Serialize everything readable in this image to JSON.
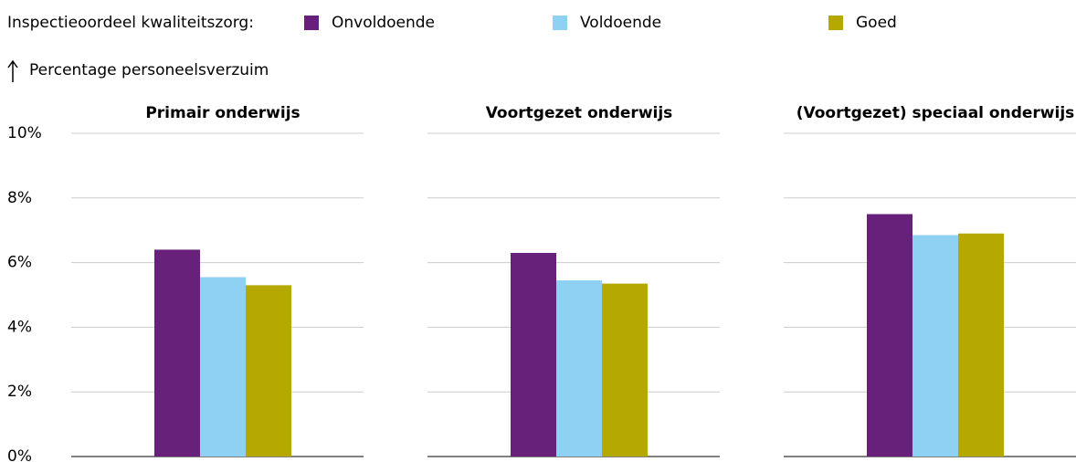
{
  "chart_data": {
    "type": "bar",
    "legend_title": "Inspectieoordeel kwaliteitszorg:",
    "ylabel": "Percentage personeelsverzuim",
    "categories": [
      "Primair onderwijs",
      "Voortgezet onderwijs",
      "(Voortgezet) speciaal onderwijs"
    ],
    "series": [
      {
        "name": "Onvoldoende",
        "color": "#68217a",
        "values": [
          6.4,
          6.3,
          7.5
        ]
      },
      {
        "name": "Voldoende",
        "color": "#8fd1f2",
        "values": [
          5.55,
          5.45,
          6.85
        ]
      },
      {
        "name": "Goed",
        "color": "#b5a800",
        "values": [
          5.3,
          5.35,
          6.9
        ]
      }
    ],
    "ylim": [
      0,
      10
    ],
    "yticks": [
      {
        "value": 0,
        "label": "0%"
      },
      {
        "value": 2,
        "label": "2%"
      },
      {
        "value": 4,
        "label": "4%"
      },
      {
        "value": 6,
        "label": "6%"
      },
      {
        "value": 8,
        "label": "8%"
      },
      {
        "value": 10,
        "label": "10%"
      }
    ],
    "grid": true
  }
}
